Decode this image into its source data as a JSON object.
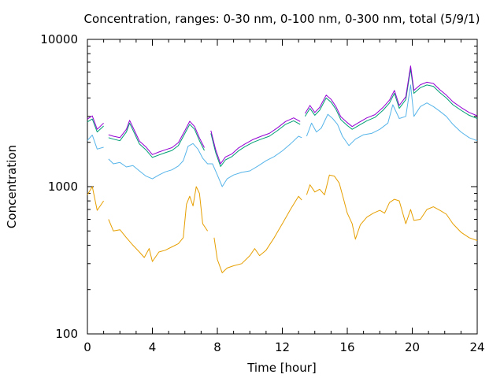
{
  "chart_data": {
    "type": "line",
    "title": "Concentration, ranges: 0-30 nm, 0-100 nm, 0-300 nm, total (5/9/1)",
    "xlabel": "Time [hour]",
    "ylabel": "Concentration",
    "xlim": [
      0,
      24
    ],
    "ylim": [
      100,
      10000
    ],
    "yscale": "log",
    "grid": false,
    "legend": "none",
    "xticks": [
      0,
      4,
      8,
      12,
      16,
      20,
      24
    ],
    "xtick_labels": [
      "0",
      "4",
      "8",
      "12",
      "16",
      "20",
      "24"
    ],
    "yticks": [
      100,
      1000,
      10000
    ],
    "ytick_labels": [
      "100",
      "1000",
      "10000"
    ],
    "series": [
      {
        "color": "#e69f00",
        "points": [
          [
            0,
            880
          ],
          [
            0.3,
            1000
          ],
          [
            0.6,
            690
          ],
          [
            1.0,
            800
          ],
          null,
          [
            1.3,
            600
          ],
          [
            1.6,
            500
          ],
          [
            2.0,
            510
          ],
          [
            2.4,
            450
          ],
          [
            2.8,
            400
          ],
          [
            3.2,
            360
          ],
          [
            3.5,
            330
          ],
          [
            3.8,
            380
          ],
          [
            4.0,
            310
          ],
          [
            4.4,
            360
          ],
          [
            4.8,
            370
          ],
          [
            5.2,
            390
          ],
          [
            5.6,
            410
          ],
          [
            5.9,
            450
          ],
          [
            6.1,
            760
          ],
          [
            6.3,
            860
          ],
          [
            6.5,
            740
          ],
          [
            6.7,
            1000
          ],
          [
            6.9,
            900
          ],
          [
            7.1,
            560
          ],
          [
            7.4,
            500
          ],
          null,
          [
            7.8,
            450
          ],
          [
            8.0,
            320
          ],
          [
            8.3,
            260
          ],
          [
            8.6,
            280
          ],
          [
            9.0,
            290
          ],
          [
            9.5,
            300
          ],
          [
            10.0,
            340
          ],
          [
            10.3,
            380
          ],
          [
            10.6,
            340
          ],
          [
            11.0,
            370
          ],
          [
            11.5,
            450
          ],
          [
            12.0,
            560
          ],
          [
            12.5,
            700
          ],
          [
            13.0,
            860
          ],
          [
            13.2,
            810
          ],
          null,
          [
            13.5,
            880
          ],
          [
            13.7,
            1030
          ],
          [
            14.0,
            920
          ],
          [
            14.3,
            960
          ],
          [
            14.6,
            880
          ],
          [
            14.9,
            1200
          ],
          [
            15.2,
            1180
          ],
          [
            15.5,
            1060
          ],
          [
            15.8,
            800
          ],
          [
            16.0,
            660
          ],
          [
            16.3,
            560
          ],
          [
            16.5,
            440
          ],
          [
            16.8,
            550
          ],
          [
            17.2,
            620
          ],
          [
            17.6,
            660
          ],
          [
            18.0,
            690
          ],
          [
            18.3,
            660
          ],
          [
            18.6,
            780
          ],
          [
            18.9,
            820
          ],
          [
            19.2,
            800
          ],
          [
            19.6,
            560
          ],
          [
            19.9,
            700
          ],
          [
            20.1,
            590
          ],
          [
            20.5,
            600
          ],
          [
            20.9,
            700
          ],
          [
            21.3,
            730
          ],
          [
            21.7,
            690
          ],
          [
            22.1,
            650
          ],
          [
            22.5,
            560
          ],
          [
            23.0,
            490
          ],
          [
            23.5,
            450
          ],
          [
            24,
            430
          ]
        ]
      },
      {
        "color": "#56b4e9",
        "points": [
          [
            0,
            2060
          ],
          [
            0.3,
            2240
          ],
          [
            0.6,
            1800
          ],
          [
            1.0,
            1850
          ],
          null,
          [
            1.3,
            1540
          ],
          [
            1.6,
            1430
          ],
          [
            2.0,
            1460
          ],
          [
            2.4,
            1360
          ],
          [
            2.8,
            1390
          ],
          [
            3.2,
            1280
          ],
          [
            3.6,
            1180
          ],
          [
            4.0,
            1130
          ],
          [
            4.4,
            1200
          ],
          [
            4.8,
            1260
          ],
          [
            5.2,
            1300
          ],
          [
            5.6,
            1380
          ],
          [
            5.9,
            1500
          ],
          [
            6.2,
            1880
          ],
          [
            6.5,
            1960
          ],
          [
            6.8,
            1800
          ],
          [
            7.1,
            1560
          ],
          [
            7.4,
            1430
          ],
          [
            7.7,
            1430
          ],
          [
            8.0,
            1200
          ],
          [
            8.3,
            1000
          ],
          [
            8.6,
            1130
          ],
          [
            9.0,
            1200
          ],
          [
            9.5,
            1250
          ],
          [
            10.0,
            1280
          ],
          [
            10.5,
            1380
          ],
          [
            11.0,
            1500
          ],
          [
            11.5,
            1600
          ],
          [
            12.0,
            1750
          ],
          [
            12.5,
            1950
          ],
          [
            13.0,
            2200
          ],
          [
            13.2,
            2150
          ],
          null,
          [
            13.5,
            2200
          ],
          [
            13.8,
            2700
          ],
          [
            14.1,
            2350
          ],
          [
            14.4,
            2500
          ],
          [
            14.8,
            3100
          ],
          [
            15.1,
            2900
          ],
          [
            15.4,
            2650
          ],
          [
            15.7,
            2200
          ],
          [
            16.1,
            1900
          ],
          [
            16.5,
            2100
          ],
          [
            17.0,
            2250
          ],
          [
            17.5,
            2300
          ],
          [
            18.0,
            2450
          ],
          [
            18.5,
            2700
          ],
          [
            18.8,
            3600
          ],
          [
            19.2,
            2900
          ],
          [
            19.6,
            3000
          ],
          [
            19.9,
            4900
          ],
          [
            20.1,
            3000
          ],
          [
            20.5,
            3500
          ],
          [
            20.9,
            3700
          ],
          [
            21.3,
            3500
          ],
          [
            21.7,
            3250
          ],
          [
            22.1,
            3000
          ],
          [
            22.5,
            2650
          ],
          [
            23.0,
            2350
          ],
          [
            23.5,
            2150
          ],
          [
            24,
            2050
          ]
        ]
      },
      {
        "color": "#009e73",
        "points": [
          [
            0,
            2750
          ],
          [
            0.3,
            2880
          ],
          [
            0.6,
            2350
          ],
          [
            1.0,
            2580
          ],
          null,
          [
            1.3,
            2150
          ],
          [
            1.6,
            2100
          ],
          [
            2.0,
            2050
          ],
          [
            2.4,
            2350
          ],
          [
            2.6,
            2700
          ],
          [
            2.9,
            2300
          ],
          [
            3.2,
            1950
          ],
          [
            3.6,
            1780
          ],
          [
            4.0,
            1580
          ],
          [
            4.4,
            1640
          ],
          [
            4.8,
            1700
          ],
          [
            5.2,
            1760
          ],
          [
            5.6,
            1900
          ],
          [
            6.0,
            2300
          ],
          [
            6.3,
            2650
          ],
          [
            6.6,
            2450
          ],
          [
            6.9,
            2050
          ],
          [
            7.2,
            1760
          ],
          null,
          [
            7.6,
            2300
          ],
          [
            7.9,
            1700
          ],
          [
            8.2,
            1370
          ],
          [
            8.5,
            1520
          ],
          [
            8.9,
            1600
          ],
          [
            9.3,
            1750
          ],
          [
            9.7,
            1870
          ],
          [
            10.2,
            2000
          ],
          [
            10.7,
            2100
          ],
          [
            11.2,
            2200
          ],
          [
            11.7,
            2400
          ],
          [
            12.2,
            2650
          ],
          [
            12.7,
            2800
          ],
          [
            13.1,
            2650
          ],
          null,
          [
            13.4,
            3000
          ],
          [
            13.7,
            3400
          ],
          [
            14.0,
            3050
          ],
          [
            14.3,
            3300
          ],
          [
            14.7,
            4000
          ],
          [
            15.0,
            3750
          ],
          [
            15.3,
            3350
          ],
          [
            15.6,
            2850
          ],
          [
            16.0,
            2600
          ],
          [
            16.3,
            2450
          ],
          [
            16.7,
            2600
          ],
          [
            17.2,
            2800
          ],
          [
            17.7,
            2950
          ],
          [
            18.2,
            3300
          ],
          [
            18.6,
            3700
          ],
          [
            18.9,
            4300
          ],
          [
            19.2,
            3400
          ],
          [
            19.6,
            3900
          ],
          [
            19.9,
            6300
          ],
          [
            20.1,
            4300
          ],
          [
            20.5,
            4700
          ],
          [
            20.9,
            4900
          ],
          [
            21.3,
            4800
          ],
          [
            21.7,
            4350
          ],
          [
            22.1,
            4000
          ],
          [
            22.5,
            3600
          ],
          [
            23.0,
            3300
          ],
          [
            23.5,
            3050
          ],
          [
            24,
            2900
          ]
        ]
      },
      {
        "color": "#9400d3",
        "points": [
          [
            0,
            2880
          ],
          [
            0.3,
            3020
          ],
          [
            0.6,
            2450
          ],
          [
            1.0,
            2700
          ],
          null,
          [
            1.3,
            2250
          ],
          [
            1.6,
            2200
          ],
          [
            2.0,
            2150
          ],
          [
            2.4,
            2450
          ],
          [
            2.6,
            2820
          ],
          [
            2.9,
            2400
          ],
          [
            3.2,
            2040
          ],
          [
            3.6,
            1860
          ],
          [
            4.0,
            1650
          ],
          [
            4.4,
            1720
          ],
          [
            4.8,
            1780
          ],
          [
            5.2,
            1840
          ],
          [
            5.6,
            1990
          ],
          [
            6.0,
            2400
          ],
          [
            6.3,
            2780
          ],
          [
            6.6,
            2560
          ],
          [
            6.9,
            2140
          ],
          [
            7.2,
            1840
          ],
          null,
          [
            7.6,
            2400
          ],
          [
            7.9,
            1780
          ],
          [
            8.2,
            1430
          ],
          [
            8.5,
            1590
          ],
          [
            8.9,
            1670
          ],
          [
            9.3,
            1830
          ],
          [
            9.7,
            1950
          ],
          [
            10.2,
            2090
          ],
          [
            10.7,
            2200
          ],
          [
            11.2,
            2300
          ],
          [
            11.7,
            2510
          ],
          [
            12.2,
            2770
          ],
          [
            12.7,
            2930
          ],
          [
            13.1,
            2770
          ],
          null,
          [
            13.4,
            3140
          ],
          [
            13.7,
            3560
          ],
          [
            14.0,
            3190
          ],
          [
            14.3,
            3450
          ],
          [
            14.7,
            4180
          ],
          [
            15.0,
            3920
          ],
          [
            15.3,
            3500
          ],
          [
            15.6,
            2980
          ],
          [
            16.0,
            2720
          ],
          [
            16.3,
            2560
          ],
          [
            16.7,
            2720
          ],
          [
            17.2,
            2930
          ],
          [
            17.7,
            3080
          ],
          [
            18.2,
            3450
          ],
          [
            18.6,
            3870
          ],
          [
            18.9,
            4500
          ],
          [
            19.2,
            3560
          ],
          [
            19.6,
            4080
          ],
          [
            19.9,
            6600
          ],
          [
            20.1,
            4500
          ],
          [
            20.5,
            4920
          ],
          [
            20.9,
            5120
          ],
          [
            21.3,
            5020
          ],
          [
            21.7,
            4550
          ],
          [
            22.1,
            4180
          ],
          [
            22.5,
            3770
          ],
          [
            23.0,
            3450
          ],
          [
            23.5,
            3190
          ],
          [
            24,
            3030
          ]
        ]
      }
    ]
  }
}
